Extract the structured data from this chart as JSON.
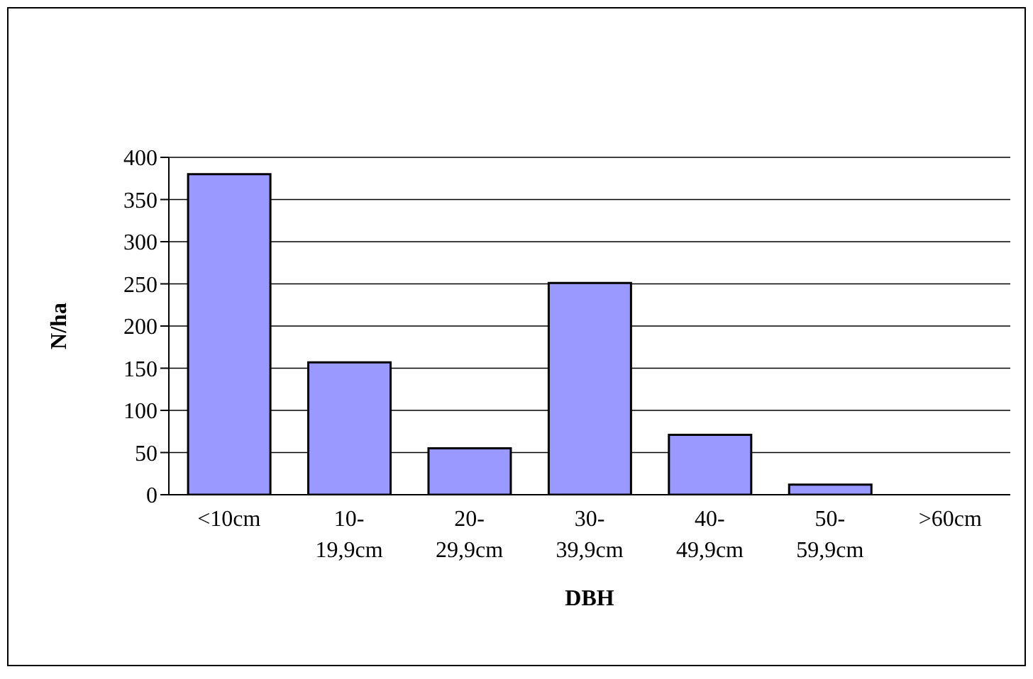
{
  "chart_data": {
    "type": "bar",
    "xlabel": "DBH",
    "ylabel": "N/ha",
    "categories": [
      "<10cm",
      "10-19,9cm",
      "20-29,9cm",
      "30-39,9cm",
      "40-49,9cm",
      "50-59,9cm",
      ">60cm"
    ],
    "values": [
      380,
      157,
      55,
      251,
      71,
      12,
      0
    ],
    "color": "#9999ff",
    "ylim": [
      0,
      400
    ],
    "yticks": [
      0,
      50,
      100,
      150,
      200,
      250,
      300,
      350,
      400
    ],
    "grid": "y"
  }
}
